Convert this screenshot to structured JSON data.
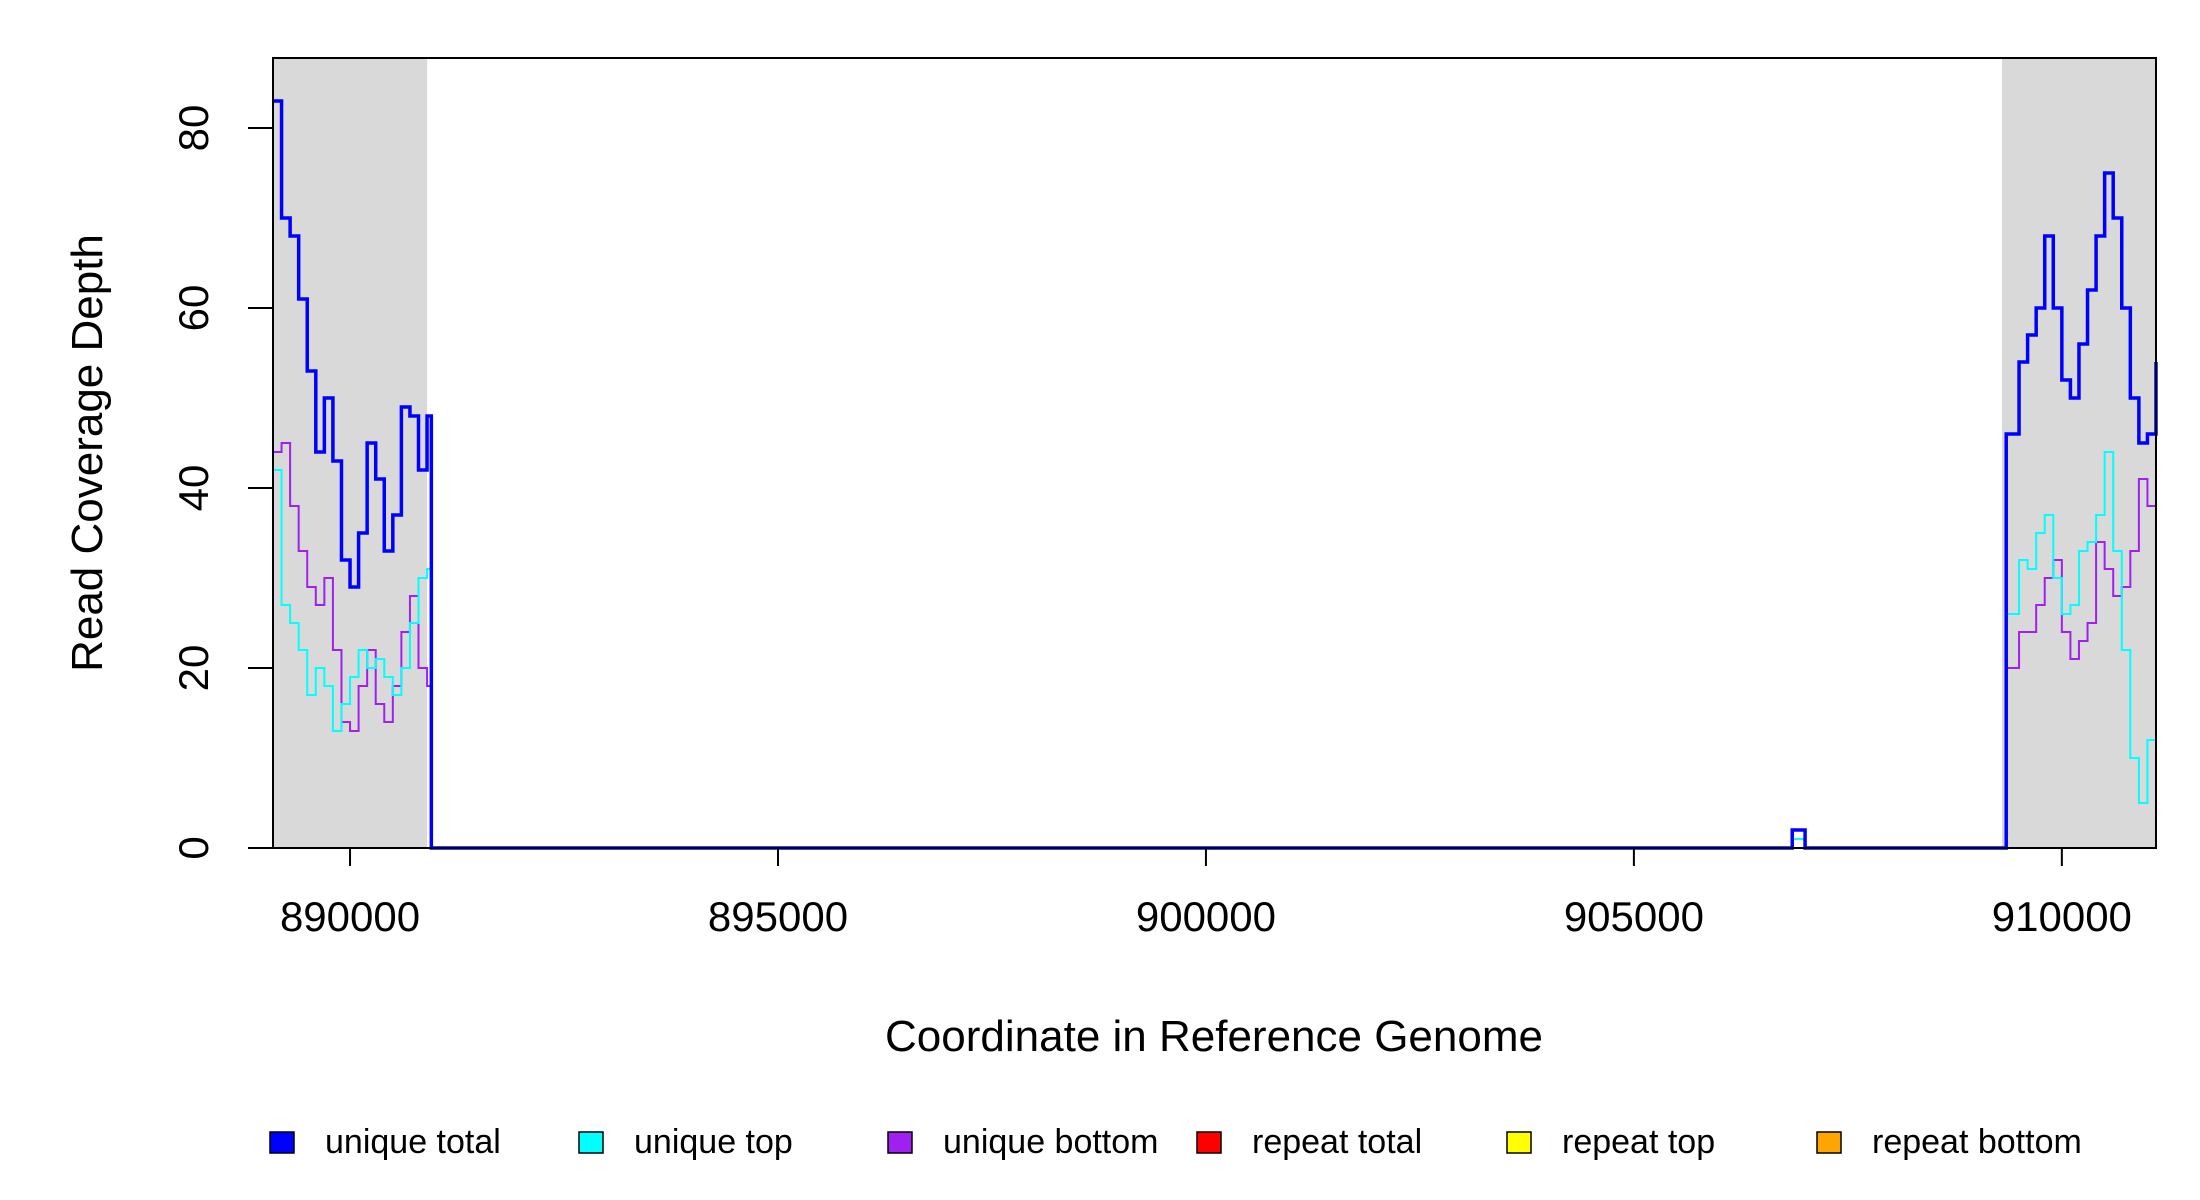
{
  "chart_data": {
    "type": "line",
    "title": "",
    "xlabel": "Coordinate in Reference Genome",
    "ylabel": "Read Coverage Depth",
    "xlim": [
      889100,
      911100
    ],
    "ylim": [
      0,
      88
    ],
    "x_ticks": [
      890000,
      895000,
      900000,
      905000,
      910000
    ],
    "y_ticks": [
      0,
      20,
      40,
      60,
      80
    ],
    "grid": false,
    "shaded_regions": [
      {
        "x0": 889100,
        "x1": 890900,
        "color": "#d9d9d9"
      },
      {
        "x0": 909300,
        "x1": 911100,
        "color": "#d9d9d9"
      }
    ],
    "legend_placement": "bottom",
    "series": [
      {
        "name": "unique total",
        "color": "#0000ff",
        "x": [
          889100,
          889200,
          889300,
          889400,
          889500,
          889600,
          889700,
          889800,
          889900,
          890000,
          890100,
          890200,
          890300,
          890400,
          890500,
          890600,
          890700,
          890800,
          890900,
          890950,
          891000,
          906800,
          906850,
          906950,
          907000,
          909300,
          909350,
          909500,
          909600,
          909700,
          909800,
          909900,
          910000,
          910100,
          910200,
          910300,
          910400,
          910500,
          910600,
          910700,
          910800,
          910900,
          911000,
          911100
        ],
        "y": [
          83,
          70,
          68,
          61,
          53,
          44,
          50,
          43,
          32,
          29,
          35,
          45,
          41,
          33,
          37,
          49,
          48,
          42,
          48,
          0,
          0,
          0,
          2,
          2,
          0,
          0,
          46,
          54,
          57,
          60,
          68,
          60,
          52,
          50,
          56,
          62,
          68,
          75,
          70,
          60,
          50,
          45,
          46,
          54
        ]
      },
      {
        "name": "unique top",
        "color": "#00ffff",
        "x": [
          889100,
          889200,
          889300,
          889400,
          889500,
          889600,
          889700,
          889800,
          889900,
          890000,
          890100,
          890200,
          890300,
          890400,
          890500,
          890600,
          890700,
          890800,
          890900,
          890950,
          891000,
          906800,
          906850,
          906950,
          907000,
          909300,
          909350,
          909500,
          909600,
          909700,
          909800,
          909900,
          910000,
          910100,
          910200,
          910300,
          910400,
          910500,
          910600,
          910700,
          910800,
          910900,
          911000,
          911100
        ],
        "y": [
          42,
          27,
          25,
          22,
          17,
          20,
          18,
          13,
          16,
          19,
          22,
          20,
          21,
          19,
          17,
          20,
          25,
          30,
          31,
          0,
          0,
          0,
          1,
          1,
          0,
          0,
          26,
          32,
          31,
          35,
          37,
          30,
          26,
          27,
          33,
          34,
          37,
          44,
          33,
          22,
          10,
          5,
          12,
          6
        ]
      },
      {
        "name": "unique bottom",
        "color": "#a020f0",
        "x": [
          889100,
          889200,
          889300,
          889400,
          889500,
          889600,
          889700,
          889800,
          889900,
          890000,
          890100,
          890200,
          890300,
          890400,
          890500,
          890600,
          890700,
          890800,
          890900,
          890950,
          891000,
          906800,
          906850,
          906950,
          907000,
          909300,
          909350,
          909500,
          909600,
          909700,
          909800,
          909900,
          910000,
          910100,
          910200,
          910300,
          910400,
          910500,
          910600,
          910700,
          910800,
          910900,
          911000,
          911100
        ],
        "y": [
          44,
          45,
          38,
          33,
          29,
          27,
          30,
          22,
          14,
          13,
          18,
          22,
          16,
          14,
          18,
          24,
          28,
          20,
          18,
          0,
          0,
          0,
          1,
          1,
          0,
          0,
          20,
          24,
          24,
          27,
          30,
          32,
          24,
          21,
          23,
          25,
          34,
          31,
          28,
          29,
          33,
          41,
          38,
          33
        ]
      },
      {
        "name": "repeat total",
        "color": "#ff0000",
        "x": [
          889100,
          891000,
          906800,
          906850,
          906950,
          907000,
          911100
        ],
        "y": [
          0,
          0,
          0,
          0,
          0,
          0,
          0
        ]
      },
      {
        "name": "repeat top",
        "color": "#ffff00",
        "x": [
          889100,
          911100
        ],
        "y": [
          0,
          0
        ]
      },
      {
        "name": "repeat bottom",
        "color": "#ffa500",
        "x": [
          889100,
          911100
        ],
        "y": [
          0,
          0
        ]
      }
    ]
  }
}
